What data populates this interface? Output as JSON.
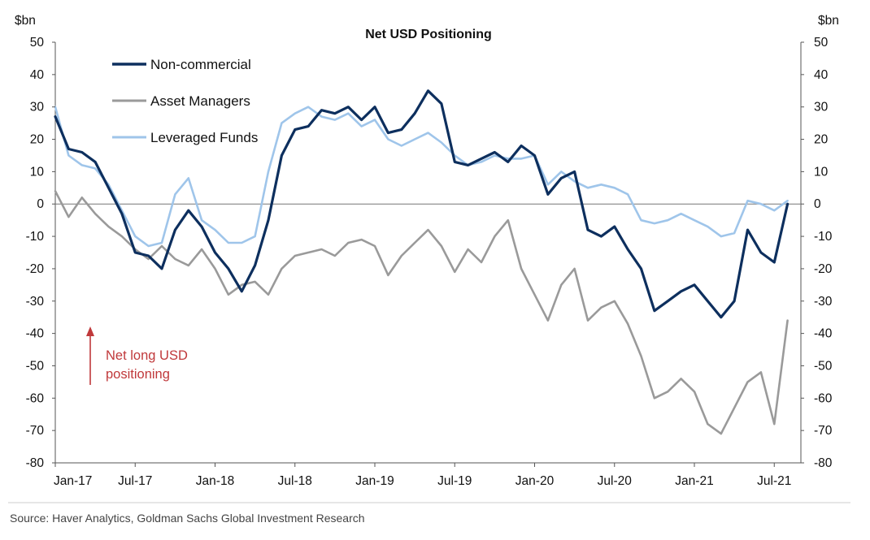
{
  "chart_data": {
    "type": "line",
    "title": "Net USD Positioning",
    "y_unit_left": "$bn",
    "y_unit_right": "$bn",
    "ylim": [
      -80,
      50
    ],
    "yticks": [
      50,
      40,
      30,
      20,
      10,
      0,
      -10,
      -20,
      -30,
      -40,
      -50,
      -60,
      -70,
      -80
    ],
    "ytick_labels": [
      "50",
      "40",
      "30",
      "20",
      "10",
      "0",
      "-10",
      "-20",
      "-30",
      "-40",
      "-50",
      "-60",
      "-70",
      "-80"
    ],
    "xlim": [
      "2017-01",
      "2021-09"
    ],
    "xticks": [
      "2017-01",
      "2017-07",
      "2018-01",
      "2018-07",
      "2019-01",
      "2019-07",
      "2020-01",
      "2020-07",
      "2021-01",
      "2021-07"
    ],
    "xtick_labels": [
      "Jan-17",
      "Jul-17",
      "Jan-18",
      "Jul-18",
      "Jan-19",
      "Jul-19",
      "Jan-20",
      "Jul-20",
      "Jan-21",
      "Jul-21"
    ],
    "grid": false,
    "zero_line": true,
    "legend_position": "top-left",
    "annotation": {
      "line1": "Net long USD",
      "line2": "positioning",
      "color": "#c0393b"
    },
    "source": "Source: Haver Analytics, Goldman Sachs Global Investment Research",
    "series": [
      {
        "name": "Non-commercial",
        "color": "#0d2f5e",
        "x": [
          "2017-01",
          "2017-02",
          "2017-03",
          "2017-04",
          "2017-05",
          "2017-06",
          "2017-07",
          "2017-08",
          "2017-09",
          "2017-10",
          "2017-11",
          "2017-12",
          "2018-01",
          "2018-02",
          "2018-03",
          "2018-04",
          "2018-05",
          "2018-06",
          "2018-07",
          "2018-08",
          "2018-09",
          "2018-10",
          "2018-11",
          "2018-12",
          "2019-01",
          "2019-02",
          "2019-03",
          "2019-04",
          "2019-05",
          "2019-06",
          "2019-07",
          "2019-08",
          "2019-09",
          "2019-10",
          "2019-11",
          "2019-12",
          "2020-01",
          "2020-02",
          "2020-03",
          "2020-04",
          "2020-05",
          "2020-06",
          "2020-07",
          "2020-08",
          "2020-09",
          "2020-10",
          "2020-11",
          "2020-12",
          "2021-01",
          "2021-02",
          "2021-03",
          "2021-04",
          "2021-05",
          "2021-06",
          "2021-07",
          "2021-08"
        ],
        "values": [
          27,
          17,
          16,
          13,
          5,
          -3,
          -15,
          -16,
          -20,
          -8,
          -2,
          -7,
          -15,
          -20,
          -27,
          -19,
          -5,
          15,
          23,
          24,
          29,
          28,
          30,
          26,
          30,
          22,
          23,
          28,
          35,
          31,
          13,
          12,
          14,
          16,
          13,
          18,
          15,
          3,
          8,
          10,
          -8,
          -10,
          -7,
          -14,
          -20,
          -33,
          -30,
          -27,
          -25,
          -30,
          -35,
          -30,
          -8,
          -15,
          -18,
          0
        ]
      },
      {
        "name": "Asset Managers",
        "color": "#9a9a9a",
        "x": [
          "2017-01",
          "2017-02",
          "2017-03",
          "2017-04",
          "2017-05",
          "2017-06",
          "2017-07",
          "2017-08",
          "2017-09",
          "2017-10",
          "2017-11",
          "2017-12",
          "2018-01",
          "2018-02",
          "2018-03",
          "2018-04",
          "2018-05",
          "2018-06",
          "2018-07",
          "2018-08",
          "2018-09",
          "2018-10",
          "2018-11",
          "2018-12",
          "2019-01",
          "2019-02",
          "2019-03",
          "2019-04",
          "2019-05",
          "2019-06",
          "2019-07",
          "2019-08",
          "2019-09",
          "2019-10",
          "2019-11",
          "2019-12",
          "2020-01",
          "2020-02",
          "2020-03",
          "2020-04",
          "2020-05",
          "2020-06",
          "2020-07",
          "2020-08",
          "2020-09",
          "2020-10",
          "2020-11",
          "2020-12",
          "2021-01",
          "2021-02",
          "2021-03",
          "2021-04",
          "2021-05",
          "2021-06",
          "2021-07",
          "2021-08"
        ],
        "values": [
          4,
          -4,
          2,
          -3,
          -7,
          -10,
          -14,
          -17,
          -13,
          -17,
          -19,
          -14,
          -20,
          -28,
          -25,
          -24,
          -28,
          -20,
          -16,
          -15,
          -14,
          -16,
          -12,
          -11,
          -13,
          -22,
          -16,
          -12,
          -8,
          -13,
          -21,
          -14,
          -18,
          -10,
          -5,
          -20,
          -28,
          -36,
          -25,
          -20,
          -36,
          -32,
          -30,
          -37,
          -47,
          -60,
          -58,
          -54,
          -58,
          -68,
          -71,
          -63,
          -55,
          -52,
          -68,
          -36
        ]
      },
      {
        "name": "Leveraged Funds",
        "color": "#9fc5ea",
        "x": [
          "2017-01",
          "2017-02",
          "2017-03",
          "2017-04",
          "2017-05",
          "2017-06",
          "2017-07",
          "2017-08",
          "2017-09",
          "2017-10",
          "2017-11",
          "2017-12",
          "2018-01",
          "2018-02",
          "2018-03",
          "2018-04",
          "2018-05",
          "2018-06",
          "2018-07",
          "2018-08",
          "2018-09",
          "2018-10",
          "2018-11",
          "2018-12",
          "2019-01",
          "2019-02",
          "2019-03",
          "2019-04",
          "2019-05",
          "2019-06",
          "2019-07",
          "2019-08",
          "2019-09",
          "2019-10",
          "2019-11",
          "2019-12",
          "2020-01",
          "2020-02",
          "2020-03",
          "2020-04",
          "2020-05",
          "2020-06",
          "2020-07",
          "2020-08",
          "2020-09",
          "2020-10",
          "2020-11",
          "2020-12",
          "2021-01",
          "2021-02",
          "2021-03",
          "2021-04",
          "2021-05",
          "2021-06",
          "2021-07",
          "2021-08"
        ],
        "values": [
          30,
          15,
          12,
          11,
          6,
          -2,
          -10,
          -13,
          -12,
          3,
          8,
          -5,
          -8,
          -12,
          -12,
          -10,
          10,
          25,
          28,
          30,
          27,
          26,
          28,
          24,
          26,
          20,
          18,
          20,
          22,
          19,
          15,
          12,
          13,
          15,
          14,
          14,
          15,
          6,
          10,
          7,
          5,
          6,
          5,
          3,
          -5,
          -6,
          -5,
          -3,
          -5,
          -7,
          -10,
          -9,
          1,
          0,
          -2,
          1
        ]
      }
    ]
  }
}
